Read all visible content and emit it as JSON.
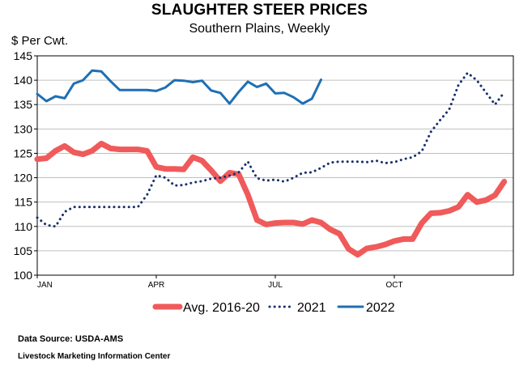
{
  "chart_data": {
    "type": "line",
    "title": "SLAUGHTER STEER PRICES",
    "subtitle": "Southern Plains, Weekly",
    "ylabel": "$ Per Cwt.",
    "xlabel": "",
    "ylim": [
      100,
      145
    ],
    "yticks": [
      "100",
      "105",
      "110",
      "115",
      "120",
      "125",
      "130",
      "135",
      "140",
      "145"
    ],
    "xticks": [
      {
        "label": "JAN",
        "week": 1
      },
      {
        "label": "APR",
        "week": 14
      },
      {
        "label": "JUL",
        "week": 27
      },
      {
        "label": "OCT",
        "week": 40
      }
    ],
    "x_range_weeks": [
      1,
      53
    ],
    "grid": true,
    "legend_position": "bottom",
    "series": [
      {
        "name": "Avg. 2016-20",
        "color": "#f05a5a",
        "style": "thick-solid",
        "values": [
          123.8,
          124.0,
          125.5,
          126.5,
          125.2,
          124.8,
          125.5,
          127.0,
          126.0,
          125.8,
          125.8,
          125.8,
          125.5,
          122.2,
          121.8,
          121.8,
          121.7,
          124.2,
          123.5,
          121.5,
          119.3,
          121.0,
          120.7,
          116.5,
          111.3,
          110.4,
          110.7,
          110.8,
          110.8,
          110.5,
          111.3,
          110.8,
          109.4,
          108.5,
          105.4,
          104.2,
          105.5,
          105.8,
          106.3,
          107.0,
          107.4,
          107.4,
          110.7,
          112.7,
          112.8,
          113.2,
          114.0,
          116.5,
          115.0,
          115.4,
          116.4,
          119.2
        ]
      },
      {
        "name": "2021",
        "color": "#1a2f6e",
        "style": "dotted",
        "values": [
          111.8,
          110.3,
          110.0,
          113.0,
          114.0,
          114.0,
          114.0,
          114.0,
          114.0,
          114.0,
          114.0,
          114.0,
          116.5,
          120.5,
          120.0,
          118.4,
          118.5,
          119.0,
          119.3,
          119.8,
          120.0,
          120.4,
          121.1,
          123.3,
          119.9,
          119.4,
          119.6,
          119.2,
          120.0,
          121.0,
          121.1,
          122.0,
          123.1,
          123.3,
          123.3,
          123.3,
          123.2,
          123.5,
          123.0,
          123.2,
          123.8,
          124.2,
          125.4,
          129.4,
          131.8,
          134.0,
          139.0,
          141.5,
          140.0,
          137.5,
          135.0,
          137.5
        ]
      },
      {
        "name": "2022",
        "color": "#1f6fb4",
        "style": "solid",
        "values": [
          137.2,
          135.7,
          136.7,
          136.3,
          139.3,
          140.0,
          142.0,
          141.8,
          139.8,
          138.0,
          138.0,
          138.0,
          138.0,
          137.8,
          138.5,
          140.0,
          139.9,
          139.6,
          139.9,
          137.9,
          137.4,
          135.2,
          137.6,
          139.7,
          138.6,
          139.3,
          137.3,
          137.4,
          136.5,
          135.2,
          136.2,
          140.1
        ]
      }
    ]
  },
  "footer": {
    "source": "Data Source:  USDA-AMS",
    "credit": "Livestock Marketing Information Center"
  }
}
